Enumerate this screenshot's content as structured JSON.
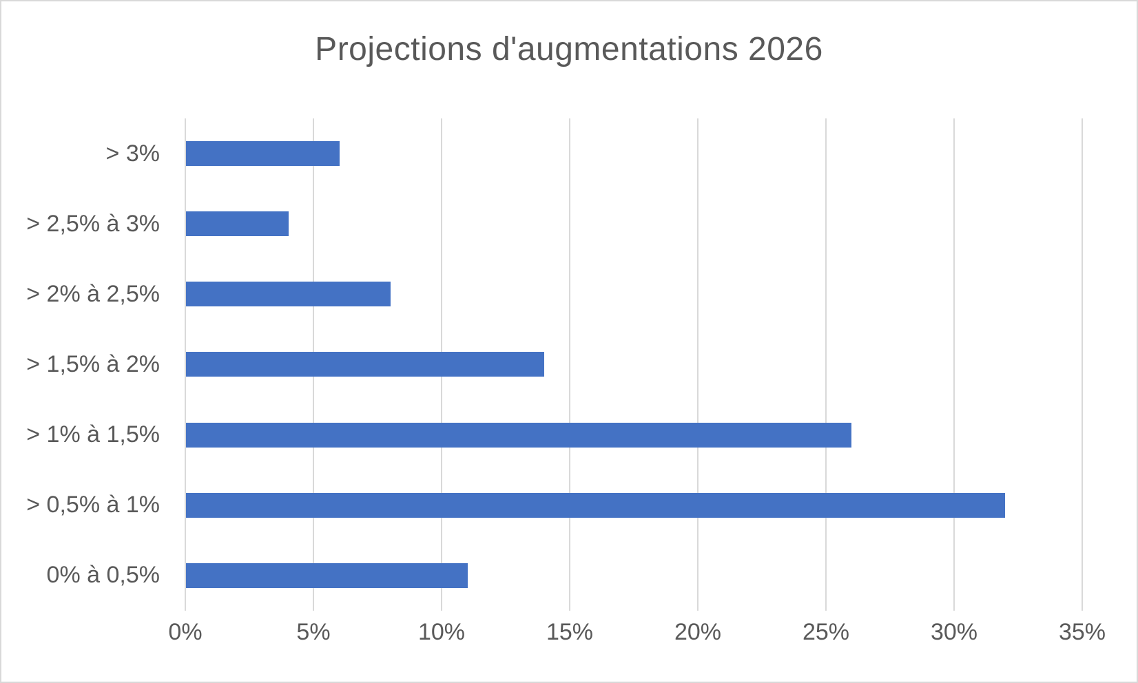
{
  "chart_data": {
    "type": "bar",
    "orientation": "horizontal",
    "title": "Projections d'augmentations 2026",
    "categories": [
      "> 3%",
      "> 2,5% à 3%",
      "> 2% à 2,5%",
      "> 1,5% à 2%",
      "> 1% à 1,5%",
      "> 0,5% à 1%",
      "0% à 0,5%"
    ],
    "values": [
      6,
      4,
      8,
      14,
      26,
      32,
      11
    ],
    "value_suffix": "%",
    "xlabel": "",
    "ylabel": "",
    "xlim": [
      0,
      35
    ],
    "x_tick_values": [
      0,
      5,
      10,
      15,
      20,
      25,
      30,
      35
    ],
    "x_tick_labels": [
      "0%",
      "5%",
      "10%",
      "15%",
      "20%",
      "25%",
      "30%",
      "35%"
    ],
    "grid": "vertical-gridlines-only",
    "legend_position": "none",
    "colors": {
      "bar": "#4472C4",
      "gridline": "#D9D9D9",
      "text": "#595959",
      "background": "#FFFFFF",
      "frame_border": "#D9D9D9"
    }
  }
}
